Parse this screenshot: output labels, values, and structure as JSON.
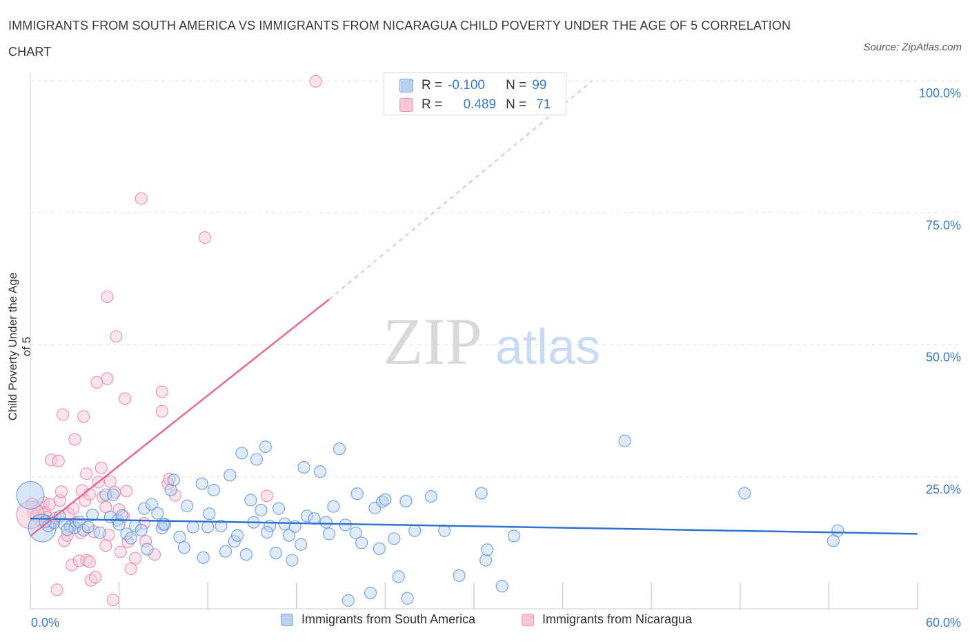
{
  "header": {
    "title": "IMMIGRANTS FROM SOUTH AMERICA VS IMMIGRANTS FROM NICARAGUA CHILD POVERTY UNDER THE AGE OF 5 CORRELATION CHART",
    "source": "Source: ZipAtlas.com"
  },
  "colors": {
    "blue": "#5b8fd6",
    "blue_fill": "#b9d0f3",
    "blue_line": "#2f73d0",
    "pink": "#e97ca0",
    "pink_fill": "#f7c6d6",
    "pink_line": "#e8688f",
    "axis_text": "#3a78c8",
    "grid": "#e3e3e3"
  },
  "correlation": {
    "rows": [
      {
        "r_label": "R =",
        "r_value": "-0.100",
        "n_label": "N =",
        "n_value": "99"
      },
      {
        "r_label": "R =",
        "r_value": "0.489",
        "n_label": "N =",
        "n_value": "71"
      }
    ]
  },
  "watermark": {
    "zip": "ZIP",
    "atlas": "atlas"
  },
  "chart_data": {
    "type": "scatter",
    "title": "IMMIGRANTS FROM SOUTH AMERICA VS IMMIGRANTS FROM NICARAGUA CHILD POVERTY UNDER THE AGE OF 5 CORRELATION CHART",
    "xlabel": "",
    "ylabel": "Child Poverty Under the Age of 5",
    "xlim": [
      0,
      60
    ],
    "ylim": [
      0,
      100
    ],
    "x_tick_labels": {
      "min": "0.0%",
      "max": "60.0%"
    },
    "y_ticks": [
      {
        "value": 100,
        "label": "100.0%"
      },
      {
        "value": 75,
        "label": "75.0%"
      },
      {
        "value": 50,
        "label": "50.0%"
      },
      {
        "value": 25,
        "label": "25.0%"
      }
    ],
    "legend": [
      "Immigrants from South America",
      "Immigrants from Nicaragua"
    ],
    "series": [
      {
        "name": "Immigrants from South America",
        "color": "blue",
        "trend": {
          "x0": 0,
          "y0": 17.1,
          "x1": 60,
          "y1": 14.2,
          "dashed_to": null
        },
        "points": [
          [
            0.0,
            21.5,
            1
          ],
          [
            0.8,
            15.3,
            1
          ],
          [
            1.2,
            15.7,
            0
          ],
          [
            1.6,
            16.3,
            0
          ],
          [
            2.0,
            17.5,
            0
          ],
          [
            2.3,
            16.0,
            0
          ],
          [
            2.7,
            15.6,
            0
          ],
          [
            3.0,
            15.4,
            0
          ],
          [
            3.3,
            16.5,
            0
          ],
          [
            3.6,
            14.9,
            0
          ],
          [
            3.9,
            15.5,
            0
          ],
          [
            4.2,
            17.8,
            0
          ],
          [
            4.7,
            14.4,
            0
          ],
          [
            5.1,
            21.6,
            0
          ],
          [
            5.4,
            17.4,
            0
          ],
          [
            5.6,
            21.6,
            0
          ],
          [
            5.9,
            16.8,
            0
          ],
          [
            6.2,
            17.7,
            0
          ],
          [
            6.5,
            14.2,
            0
          ],
          [
            6.8,
            13.4,
            0
          ],
          [
            7.1,
            15.7,
            0
          ],
          [
            7.5,
            14.9,
            0
          ],
          [
            7.7,
            19.0,
            0
          ],
          [
            7.9,
            11.3,
            0
          ],
          [
            8.2,
            19.8,
            0
          ],
          [
            8.6,
            18.1,
            0
          ],
          [
            8.9,
            15.3,
            0
          ],
          [
            9.1,
            16.0,
            0
          ],
          [
            9.5,
            22.5,
            0
          ],
          [
            9.7,
            24.4,
            0
          ],
          [
            10.1,
            13.6,
            0
          ],
          [
            10.4,
            11.6,
            0
          ],
          [
            10.6,
            19.5,
            0
          ],
          [
            11.0,
            15.5,
            0
          ],
          [
            11.6,
            23.7,
            0
          ],
          [
            11.7,
            9.7,
            0
          ],
          [
            12.1,
            18.0,
            0
          ],
          [
            12.4,
            22.5,
            0
          ],
          [
            12.9,
            15.7,
            0
          ],
          [
            13.2,
            10.9,
            0
          ],
          [
            13.5,
            25.3,
            0
          ],
          [
            13.8,
            12.8,
            0
          ],
          [
            14.0,
            13.9,
            0
          ],
          [
            14.3,
            29.5,
            0
          ],
          [
            14.6,
            10.3,
            0
          ],
          [
            14.9,
            20.6,
            0
          ],
          [
            15.1,
            16.4,
            0
          ],
          [
            15.3,
            28.3,
            0
          ],
          [
            15.6,
            18.7,
            0
          ],
          [
            15.9,
            30.7,
            0
          ],
          [
            16.2,
            15.7,
            0
          ],
          [
            16.6,
            10.6,
            0
          ],
          [
            16.8,
            19.0,
            0
          ],
          [
            17.2,
            16.1,
            0
          ],
          [
            17.5,
            13.9,
            0
          ],
          [
            17.7,
            9.2,
            0
          ],
          [
            17.9,
            15.6,
            0
          ],
          [
            18.3,
            12.2,
            0
          ],
          [
            18.5,
            26.8,
            0
          ],
          [
            18.7,
            17.6,
            0
          ],
          [
            19.2,
            17.1,
            0
          ],
          [
            19.6,
            26.0,
            0
          ],
          [
            20.0,
            16.4,
            0
          ],
          [
            20.2,
            14.2,
            0
          ],
          [
            20.5,
            19.4,
            0
          ],
          [
            20.9,
            30.3,
            0
          ],
          [
            21.3,
            15.9,
            0
          ],
          [
            21.5,
            1.6,
            0
          ],
          [
            22.0,
            14.4,
            0
          ],
          [
            22.1,
            21.8,
            0
          ],
          [
            22.4,
            12.5,
            0
          ],
          [
            23.0,
            3.0,
            0
          ],
          [
            23.3,
            19.1,
            0
          ],
          [
            23.6,
            11.4,
            0
          ],
          [
            23.8,
            20.3,
            0
          ],
          [
            24.0,
            20.7,
            0
          ],
          [
            24.6,
            13.3,
            0
          ],
          [
            24.9,
            6.1,
            0
          ],
          [
            25.5,
            2.0,
            0
          ],
          [
            26.0,
            14.8,
            0
          ],
          [
            25.4,
            20.4,
            0
          ],
          [
            27.1,
            21.3,
            0
          ],
          [
            28.0,
            14.8,
            0
          ],
          [
            29.0,
            6.3,
            0
          ],
          [
            30.5,
            21.9,
            0
          ],
          [
            30.8,
            9.2,
            0
          ],
          [
            30.9,
            11.2,
            0
          ],
          [
            31.9,
            4.3,
            0
          ],
          [
            32.7,
            13.8,
            0
          ],
          [
            40.2,
            31.8,
            0
          ],
          [
            48.3,
            21.9,
            0
          ],
          [
            54.3,
            12.9,
            0
          ],
          [
            54.6,
            14.8,
            0
          ],
          [
            1.0,
            16.5,
            0
          ],
          [
            2.5,
            15.0,
            0
          ],
          [
            6.0,
            16.0,
            0
          ],
          [
            9.0,
            16.0,
            0
          ],
          [
            12.0,
            15.5,
            0
          ],
          [
            16.0,
            14.5,
            0
          ]
        ]
      },
      {
        "name": "Immigrants from Nicaragua",
        "color": "pink",
        "trend": {
          "x0": 0,
          "y0": 13.8,
          "x1": 20.2,
          "y1": 58.6,
          "dashed_to": {
            "x": 38.0,
            "y": 100.0
          }
        },
        "points": [
          [
            0.1,
            19.9,
            0
          ],
          [
            0.2,
            18.1,
            0
          ],
          [
            0.4,
            17.7,
            0
          ],
          [
            0.5,
            18.6,
            0
          ],
          [
            0.6,
            16.8,
            0
          ],
          [
            0.8,
            19.1,
            0
          ],
          [
            0.9,
            20.1,
            0
          ],
          [
            1.0,
            18.3,
            0
          ],
          [
            1.1,
            17.4,
            0
          ],
          [
            1.3,
            19.8,
            0
          ],
          [
            1.4,
            28.2,
            0
          ],
          [
            1.5,
            16.6,
            0
          ],
          [
            1.7,
            17.2,
            0
          ],
          [
            1.8,
            3.6,
            0
          ],
          [
            1.9,
            28.0,
            0
          ],
          [
            2.0,
            20.5,
            0
          ],
          [
            2.1,
            22.2,
            0
          ],
          [
            2.2,
            36.8,
            0
          ],
          [
            2.3,
            12.9,
            0
          ],
          [
            2.5,
            13.9,
            0
          ],
          [
            2.6,
            18.0,
            0
          ],
          [
            2.8,
            8.3,
            0
          ],
          [
            2.9,
            19.0,
            0
          ],
          [
            3.0,
            32.1,
            0
          ],
          [
            3.1,
            16.3,
            0
          ],
          [
            3.3,
            9.1,
            0
          ],
          [
            3.5,
            22.4,
            0
          ],
          [
            3.4,
            14.4,
            0
          ],
          [
            3.6,
            36.4,
            0
          ],
          [
            3.8,
            9.2,
            0
          ],
          [
            3.7,
            20.5,
            0
          ],
          [
            3.8,
            25.6,
            0
          ],
          [
            4.0,
            8.9,
            0
          ],
          [
            4.0,
            21.7,
            0
          ],
          [
            4.1,
            5.4,
            0
          ],
          [
            4.3,
            14.6,
            0
          ],
          [
            4.4,
            6.0,
            0
          ],
          [
            4.5,
            42.9,
            0
          ],
          [
            4.6,
            24.0,
            0
          ],
          [
            4.9,
            21.2,
            0
          ],
          [
            4.8,
            26.7,
            0
          ],
          [
            5.1,
            19.3,
            0
          ],
          [
            5.1,
            12.0,
            0
          ],
          [
            5.2,
            43.6,
            0
          ],
          [
            5.2,
            59.1,
            0
          ],
          [
            5.3,
            14.0,
            0
          ],
          [
            5.4,
            24.1,
            0
          ],
          [
            5.6,
            1.7,
            0
          ],
          [
            5.7,
            22.1,
            0
          ],
          [
            5.8,
            51.6,
            0
          ],
          [
            6.0,
            18.8,
            0
          ],
          [
            6.1,
            10.8,
            0
          ],
          [
            6.3,
            17.5,
            0
          ],
          [
            6.4,
            39.8,
            0
          ],
          [
            6.5,
            22.3,
            0
          ],
          [
            6.6,
            12.7,
            0
          ],
          [
            6.8,
            7.6,
            0
          ],
          [
            7.1,
            9.6,
            0
          ],
          [
            7.5,
            77.7,
            0
          ],
          [
            7.7,
            16.2,
            0
          ],
          [
            7.8,
            12.8,
            0
          ],
          [
            8.4,
            10.3,
            0
          ],
          [
            8.9,
            41.1,
            0
          ],
          [
            8.9,
            37.4,
            0
          ],
          [
            9.3,
            23.7,
            0
          ],
          [
            9.4,
            24.6,
            0
          ],
          [
            9.8,
            21.5,
            0
          ],
          [
            11.8,
            70.3,
            0
          ],
          [
            16.0,
            21.4,
            0
          ],
          [
            19.3,
            99.9,
            0
          ],
          [
            0.0,
            17.8,
            1
          ]
        ]
      }
    ]
  },
  "ylabel": "Child Poverty Under the Age of 5"
}
